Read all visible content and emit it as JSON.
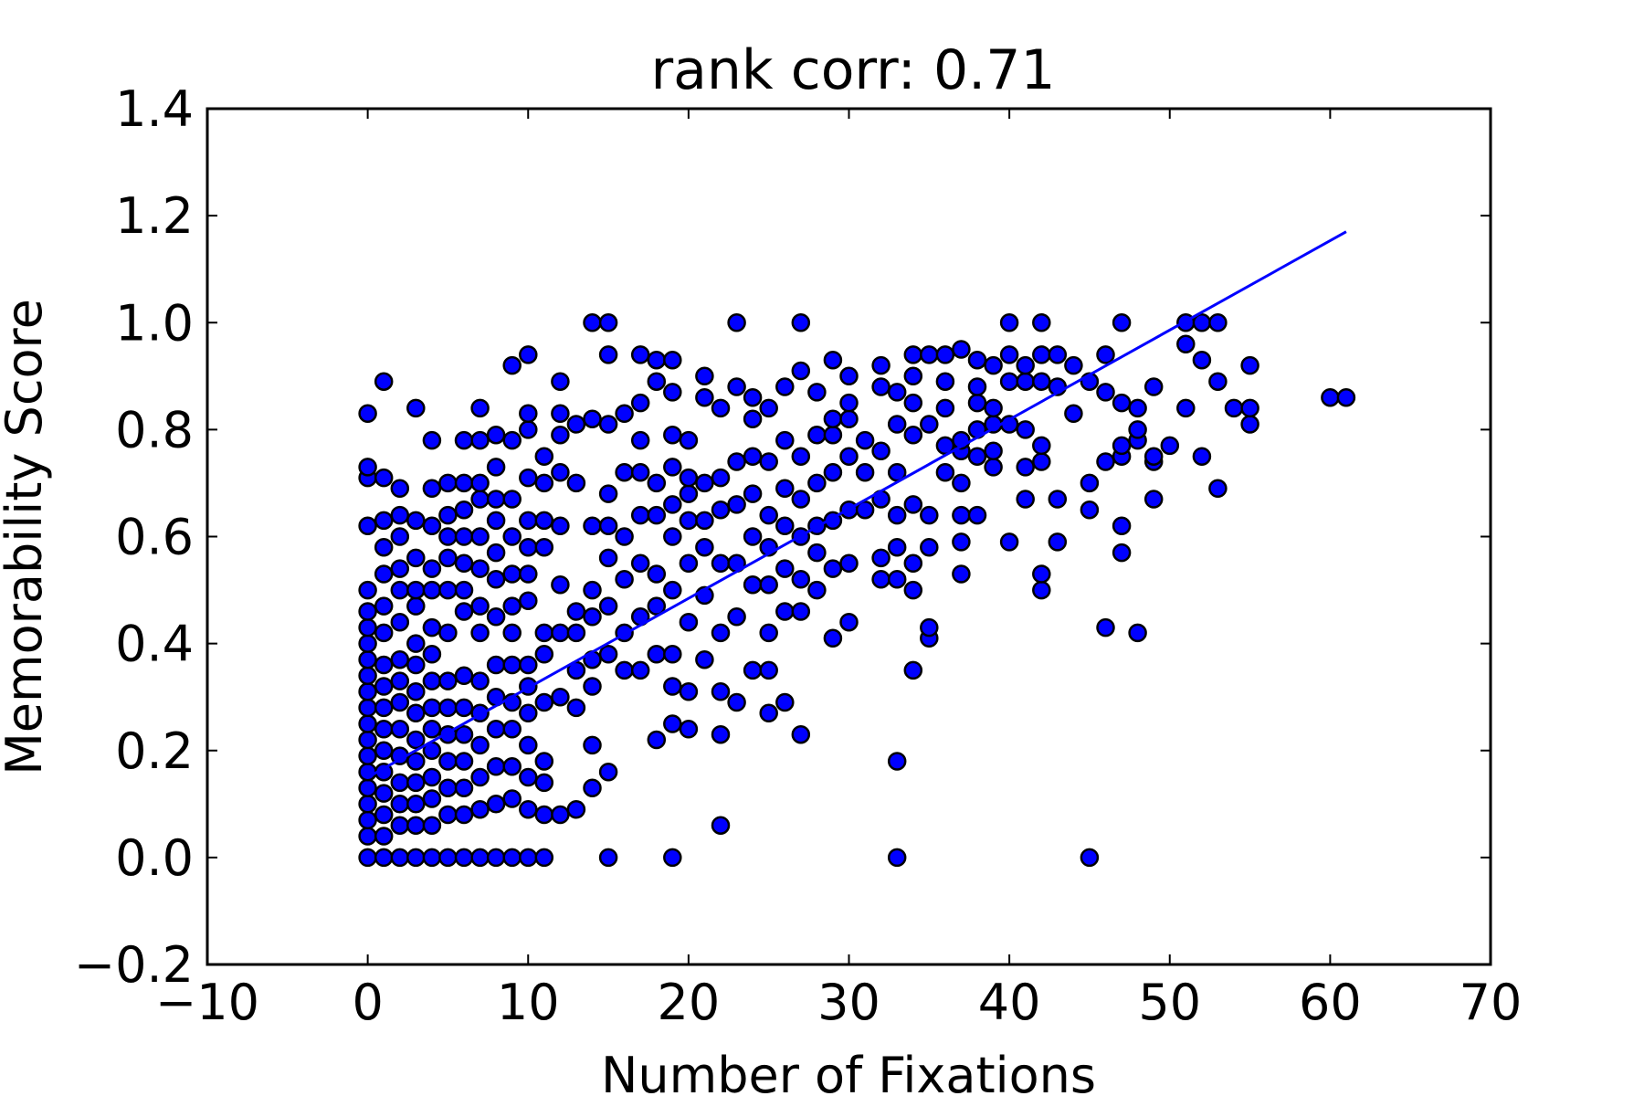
{
  "chart_data": {
    "type": "scatter",
    "title": "rank corr: 0.71",
    "xlabel": "Number of Fixations",
    "ylabel": "Memorability Score",
    "xlim": [
      -10,
      70
    ],
    "ylim": [
      -0.2,
      1.4
    ],
    "x_ticks": [
      -10,
      0,
      10,
      20,
      30,
      40,
      50,
      60,
      70
    ],
    "x_tick_labels": [
      "−10",
      "0",
      "10",
      "20",
      "30",
      "40",
      "50",
      "60",
      "70"
    ],
    "y_ticks": [
      -0.2,
      0.0,
      0.2,
      0.4,
      0.6,
      0.8,
      1.0,
      1.2,
      1.4
    ],
    "y_tick_labels": [
      "−0.2",
      "0.0",
      "0.2",
      "0.4",
      "0.6",
      "0.8",
      "1.0",
      "1.2",
      "1.4"
    ],
    "grid": false,
    "legend": null,
    "colors": {
      "marker_fill": "#0000ff",
      "marker_edge": "#000000",
      "fit_line": "#0000ff"
    },
    "fit_line": {
      "x": [
        0,
        61
      ],
      "y": [
        0.15,
        1.17
      ]
    },
    "points": [
      [
        0,
        0
      ],
      [
        1,
        0
      ],
      [
        2,
        0
      ],
      [
        3,
        0
      ],
      [
        4,
        0
      ],
      [
        5,
        0
      ],
      [
        6,
        0
      ],
      [
        7,
        0
      ],
      [
        8,
        0
      ],
      [
        9,
        0
      ],
      [
        10,
        0
      ],
      [
        11,
        0
      ],
      [
        15,
        0
      ],
      [
        19,
        0
      ],
      [
        33,
        0
      ],
      [
        45,
        0
      ],
      [
        0,
        0.04
      ],
      [
        0,
        0.07
      ],
      [
        0,
        0.1
      ],
      [
        0,
        0.13
      ],
      [
        0,
        0.16
      ],
      [
        0,
        0.19
      ],
      [
        0,
        0.22
      ],
      [
        0,
        0.25
      ],
      [
        0,
        0.28
      ],
      [
        0,
        0.31
      ],
      [
        0,
        0.34
      ],
      [
        0,
        0.37
      ],
      [
        0,
        0.4
      ],
      [
        0,
        0.43
      ],
      [
        0,
        0.46
      ],
      [
        0,
        0.5
      ],
      [
        0,
        0.62
      ],
      [
        0,
        0.71
      ],
      [
        0,
        0.73
      ],
      [
        0,
        0.83
      ],
      [
        1,
        0.04
      ],
      [
        1,
        0.08
      ],
      [
        1,
        0.12
      ],
      [
        1,
        0.16
      ],
      [
        1,
        0.2
      ],
      [
        1,
        0.24
      ],
      [
        1,
        0.28
      ],
      [
        1,
        0.32
      ],
      [
        1,
        0.36
      ],
      [
        1,
        0.42
      ],
      [
        1,
        0.47
      ],
      [
        1,
        0.53
      ],
      [
        1,
        0.58
      ],
      [
        1,
        0.63
      ],
      [
        1,
        0.71
      ],
      [
        1,
        0.89
      ],
      [
        2,
        0.06
      ],
      [
        2,
        0.1
      ],
      [
        2,
        0.14
      ],
      [
        2,
        0.19
      ],
      [
        2,
        0.24
      ],
      [
        2,
        0.29
      ],
      [
        2,
        0.33
      ],
      [
        2,
        0.37
      ],
      [
        2,
        0.44
      ],
      [
        2,
        0.5
      ],
      [
        2,
        0.54
      ],
      [
        2,
        0.6
      ],
      [
        2,
        0.64
      ],
      [
        2,
        0.69
      ],
      [
        3,
        0.06
      ],
      [
        3,
        0.1
      ],
      [
        3,
        0.14
      ],
      [
        3,
        0.18
      ],
      [
        3,
        0.22
      ],
      [
        3,
        0.27
      ],
      [
        3,
        0.31
      ],
      [
        3,
        0.36
      ],
      [
        3,
        0.4
      ],
      [
        3,
        0.47
      ],
      [
        3,
        0.5
      ],
      [
        3,
        0.56
      ],
      [
        3,
        0.63
      ],
      [
        3,
        0.84
      ],
      [
        4,
        0.06
      ],
      [
        4,
        0.11
      ],
      [
        4,
        0.15
      ],
      [
        4,
        0.2
      ],
      [
        4,
        0.24
      ],
      [
        4,
        0.28
      ],
      [
        4,
        0.33
      ],
      [
        4,
        0.38
      ],
      [
        4,
        0.43
      ],
      [
        4,
        0.5
      ],
      [
        4,
        0.54
      ],
      [
        4,
        0.62
      ],
      [
        4,
        0.69
      ],
      [
        4,
        0.78
      ],
      [
        5,
        0.08
      ],
      [
        5,
        0.13
      ],
      [
        5,
        0.18
      ],
      [
        5,
        0.23
      ],
      [
        5,
        0.28
      ],
      [
        5,
        0.33
      ],
      [
        5,
        0.42
      ],
      [
        5,
        0.5
      ],
      [
        5,
        0.56
      ],
      [
        5,
        0.6
      ],
      [
        5,
        0.64
      ],
      [
        5,
        0.7
      ],
      [
        6,
        0.08
      ],
      [
        6,
        0.13
      ],
      [
        6,
        0.18
      ],
      [
        6,
        0.23
      ],
      [
        6,
        0.28
      ],
      [
        6,
        0.34
      ],
      [
        6,
        0.46
      ],
      [
        6,
        0.5
      ],
      [
        6,
        0.55
      ],
      [
        6,
        0.6
      ],
      [
        6,
        0.65
      ],
      [
        6,
        0.7
      ],
      [
        6,
        0.78
      ],
      [
        7,
        0.09
      ],
      [
        7,
        0.15
      ],
      [
        7,
        0.21
      ],
      [
        7,
        0.27
      ],
      [
        7,
        0.33
      ],
      [
        7,
        0.42
      ],
      [
        7,
        0.47
      ],
      [
        7,
        0.54
      ],
      [
        7,
        0.6
      ],
      [
        7,
        0.67
      ],
      [
        7,
        0.7
      ],
      [
        7,
        0.78
      ],
      [
        7,
        0.84
      ],
      [
        8,
        0.1
      ],
      [
        8,
        0.17
      ],
      [
        8,
        0.24
      ],
      [
        8,
        0.3
      ],
      [
        8,
        0.36
      ],
      [
        8,
        0.45
      ],
      [
        8,
        0.52
      ],
      [
        8,
        0.57
      ],
      [
        8,
        0.63
      ],
      [
        8,
        0.67
      ],
      [
        8,
        0.73
      ],
      [
        8,
        0.79
      ],
      [
        9,
        0.11
      ],
      [
        9,
        0.17
      ],
      [
        9,
        0.24
      ],
      [
        9,
        0.29
      ],
      [
        9,
        0.36
      ],
      [
        9,
        0.42
      ],
      [
        9,
        0.47
      ],
      [
        9,
        0.53
      ],
      [
        9,
        0.6
      ],
      [
        9,
        0.67
      ],
      [
        9,
        0.78
      ],
      [
        9,
        0.92
      ],
      [
        10,
        0.09
      ],
      [
        10,
        0.15
      ],
      [
        10,
        0.21
      ],
      [
        10,
        0.27
      ],
      [
        10,
        0.32
      ],
      [
        10,
        0.36
      ],
      [
        10,
        0.48
      ],
      [
        10,
        0.53
      ],
      [
        10,
        0.58
      ],
      [
        10,
        0.63
      ],
      [
        10,
        0.71
      ],
      [
        10,
        0.8
      ],
      [
        10,
        0.83
      ],
      [
        10,
        0.94
      ],
      [
        11,
        0.08
      ],
      [
        11,
        0.14
      ],
      [
        11,
        0.18
      ],
      [
        11,
        0.29
      ],
      [
        11,
        0.38
      ],
      [
        11,
        0.42
      ],
      [
        11,
        0.58
      ],
      [
        11,
        0.63
      ],
      [
        11,
        0.7
      ],
      [
        11,
        0.75
      ],
      [
        12,
        0.08
      ],
      [
        12,
        0.3
      ],
      [
        12,
        0.42
      ],
      [
        12,
        0.51
      ],
      [
        12,
        0.62
      ],
      [
        12,
        0.72
      ],
      [
        12,
        0.79
      ],
      [
        12,
        0.83
      ],
      [
        12,
        0.89
      ],
      [
        13,
        0.09
      ],
      [
        13,
        0.28
      ],
      [
        13,
        0.35
      ],
      [
        13,
        0.42
      ],
      [
        13,
        0.46
      ],
      [
        13,
        0.7
      ],
      [
        13,
        0.81
      ],
      [
        14,
        0.13
      ],
      [
        14,
        0.21
      ],
      [
        14,
        0.32
      ],
      [
        14,
        0.37
      ],
      [
        14,
        0.45
      ],
      [
        14,
        0.5
      ],
      [
        14,
        0.62
      ],
      [
        14,
        0.82
      ],
      [
        14,
        1.0
      ],
      [
        15,
        0.16
      ],
      [
        15,
        0.38
      ],
      [
        15,
        0.47
      ],
      [
        15,
        0.56
      ],
      [
        15,
        0.62
      ],
      [
        15,
        0.68
      ],
      [
        15,
        0.81
      ],
      [
        15,
        0.94
      ],
      [
        15,
        1.0
      ],
      [
        16,
        0.35
      ],
      [
        16,
        0.42
      ],
      [
        16,
        0.52
      ],
      [
        16,
        0.6
      ],
      [
        16,
        0.72
      ],
      [
        16,
        0.83
      ],
      [
        17,
        0.35
      ],
      [
        17,
        0.45
      ],
      [
        17,
        0.55
      ],
      [
        17,
        0.64
      ],
      [
        17,
        0.72
      ],
      [
        17,
        0.78
      ],
      [
        17,
        0.85
      ],
      [
        17,
        0.94
      ],
      [
        18,
        0.22
      ],
      [
        18,
        0.38
      ],
      [
        18,
        0.47
      ],
      [
        18,
        0.53
      ],
      [
        18,
        0.64
      ],
      [
        18,
        0.7
      ],
      [
        18,
        0.89
      ],
      [
        18,
        0.93
      ],
      [
        19,
        0.25
      ],
      [
        19,
        0.32
      ],
      [
        19,
        0.38
      ],
      [
        19,
        0.5
      ],
      [
        19,
        0.6
      ],
      [
        19,
        0.66
      ],
      [
        19,
        0.73
      ],
      [
        19,
        0.79
      ],
      [
        19,
        0.87
      ],
      [
        19,
        0.93
      ],
      [
        20,
        0.24
      ],
      [
        20,
        0.31
      ],
      [
        20,
        0.44
      ],
      [
        20,
        0.55
      ],
      [
        20,
        0.63
      ],
      [
        20,
        0.68
      ],
      [
        20,
        0.71
      ],
      [
        20,
        0.78
      ],
      [
        21,
        0.37
      ],
      [
        21,
        0.49
      ],
      [
        21,
        0.58
      ],
      [
        21,
        0.63
      ],
      [
        21,
        0.7
      ],
      [
        21,
        0.86
      ],
      [
        21,
        0.9
      ],
      [
        22,
        0.06
      ],
      [
        22,
        0.23
      ],
      [
        22,
        0.31
      ],
      [
        22,
        0.42
      ],
      [
        22,
        0.55
      ],
      [
        22,
        0.65
      ],
      [
        22,
        0.71
      ],
      [
        22,
        0.84
      ],
      [
        23,
        0.29
      ],
      [
        23,
        0.45
      ],
      [
        23,
        0.55
      ],
      [
        23,
        0.66
      ],
      [
        23,
        0.74
      ],
      [
        23,
        0.88
      ],
      [
        23,
        1.0
      ],
      [
        24,
        0.35
      ],
      [
        24,
        0.51
      ],
      [
        24,
        0.6
      ],
      [
        24,
        0.68
      ],
      [
        24,
        0.75
      ],
      [
        24,
        0.82
      ],
      [
        24,
        0.86
      ],
      [
        25,
        0.27
      ],
      [
        25,
        0.35
      ],
      [
        25,
        0.42
      ],
      [
        25,
        0.51
      ],
      [
        25,
        0.58
      ],
      [
        25,
        0.64
      ],
      [
        25,
        0.74
      ],
      [
        25,
        0.84
      ],
      [
        26,
        0.29
      ],
      [
        26,
        0.46
      ],
      [
        26,
        0.54
      ],
      [
        26,
        0.62
      ],
      [
        26,
        0.69
      ],
      [
        26,
        0.78
      ],
      [
        26,
        0.88
      ],
      [
        27,
        0.23
      ],
      [
        27,
        0.46
      ],
      [
        27,
        0.52
      ],
      [
        27,
        0.6
      ],
      [
        27,
        0.67
      ],
      [
        27,
        0.75
      ],
      [
        27,
        0.91
      ],
      [
        27,
        1.0
      ],
      [
        28,
        0.5
      ],
      [
        28,
        0.57
      ],
      [
        28,
        0.62
      ],
      [
        28,
        0.7
      ],
      [
        28,
        0.79
      ],
      [
        28,
        0.87
      ],
      [
        29,
        0.41
      ],
      [
        29,
        0.54
      ],
      [
        29,
        0.63
      ],
      [
        29,
        0.72
      ],
      [
        29,
        0.79
      ],
      [
        29,
        0.82
      ],
      [
        29,
        0.93
      ],
      [
        30,
        0.44
      ],
      [
        30,
        0.55
      ],
      [
        30,
        0.65
      ],
      [
        30,
        0.75
      ],
      [
        30,
        0.82
      ],
      [
        30,
        0.85
      ],
      [
        30,
        0.9
      ],
      [
        31,
        0.65
      ],
      [
        31,
        0.72
      ],
      [
        31,
        0.78
      ],
      [
        32,
        0.52
      ],
      [
        32,
        0.56
      ],
      [
        32,
        0.67
      ],
      [
        32,
        0.76
      ],
      [
        32,
        0.88
      ],
      [
        32,
        0.92
      ],
      [
        33,
        0.18
      ],
      [
        33,
        0.52
      ],
      [
        33,
        0.58
      ],
      [
        33,
        0.64
      ],
      [
        33,
        0.72
      ],
      [
        33,
        0.81
      ],
      [
        33,
        0.87
      ],
      [
        34,
        0.35
      ],
      [
        34,
        0.5
      ],
      [
        34,
        0.55
      ],
      [
        34,
        0.66
      ],
      [
        34,
        0.79
      ],
      [
        34,
        0.85
      ],
      [
        34,
        0.9
      ],
      [
        34,
        0.94
      ],
      [
        35,
        0.41
      ],
      [
        35,
        0.43
      ],
      [
        35,
        0.58
      ],
      [
        35,
        0.64
      ],
      [
        35,
        0.81
      ],
      [
        35,
        0.94
      ],
      [
        36,
        0.72
      ],
      [
        36,
        0.77
      ],
      [
        36,
        0.84
      ],
      [
        36,
        0.89
      ],
      [
        36,
        0.94
      ],
      [
        37,
        0.53
      ],
      [
        37,
        0.59
      ],
      [
        37,
        0.64
      ],
      [
        37,
        0.7
      ],
      [
        37,
        0.76
      ],
      [
        37,
        0.78
      ],
      [
        37,
        0.95
      ],
      [
        38,
        0.64
      ],
      [
        38,
        0.75
      ],
      [
        38,
        0.8
      ],
      [
        38,
        0.85
      ],
      [
        38,
        0.88
      ],
      [
        38,
        0.93
      ],
      [
        39,
        0.73
      ],
      [
        39,
        0.76
      ],
      [
        39,
        0.81
      ],
      [
        39,
        0.84
      ],
      [
        39,
        0.92
      ],
      [
        40,
        0.59
      ],
      [
        40,
        0.81
      ],
      [
        40,
        0.89
      ],
      [
        40,
        0.94
      ],
      [
        40,
        1.0
      ],
      [
        41,
        0.67
      ],
      [
        41,
        0.73
      ],
      [
        41,
        0.8
      ],
      [
        41,
        0.89
      ],
      [
        41,
        0.92
      ],
      [
        42,
        0.5
      ],
      [
        42,
        0.53
      ],
      [
        42,
        0.74
      ],
      [
        42,
        0.77
      ],
      [
        42,
        0.89
      ],
      [
        42,
        0.94
      ],
      [
        42,
        1.0
      ],
      [
        43,
        0.59
      ],
      [
        43,
        0.67
      ],
      [
        43,
        0.88
      ],
      [
        43,
        0.94
      ],
      [
        44,
        0.83
      ],
      [
        44,
        0.92
      ],
      [
        45,
        0.65
      ],
      [
        45,
        0.7
      ],
      [
        45,
        0.89
      ],
      [
        46,
        0.43
      ],
      [
        46,
        0.74
      ],
      [
        46,
        0.87
      ],
      [
        46,
        0.94
      ],
      [
        47,
        0.57
      ],
      [
        47,
        0.62
      ],
      [
        47,
        0.75
      ],
      [
        47,
        0.77
      ],
      [
        47,
        0.85
      ],
      [
        47,
        1.0
      ],
      [
        48,
        0.42
      ],
      [
        48,
        0.78
      ],
      [
        48,
        0.8
      ],
      [
        48,
        0.84
      ],
      [
        49,
        0.67
      ],
      [
        49,
        0.74
      ],
      [
        49,
        0.75
      ],
      [
        49,
        0.88
      ],
      [
        50,
        0.77
      ],
      [
        51,
        0.84
      ],
      [
        51,
        0.96
      ],
      [
        51,
        1.0
      ],
      [
        52,
        0.75
      ],
      [
        52,
        0.93
      ],
      [
        52,
        1.0
      ],
      [
        53,
        0.69
      ],
      [
        53,
        0.89
      ],
      [
        53,
        1.0
      ],
      [
        54,
        0.84
      ],
      [
        55,
        0.81
      ],
      [
        55,
        0.84
      ],
      [
        55,
        0.92
      ],
      [
        60,
        0.86
      ],
      [
        61,
        0.86
      ]
    ]
  }
}
